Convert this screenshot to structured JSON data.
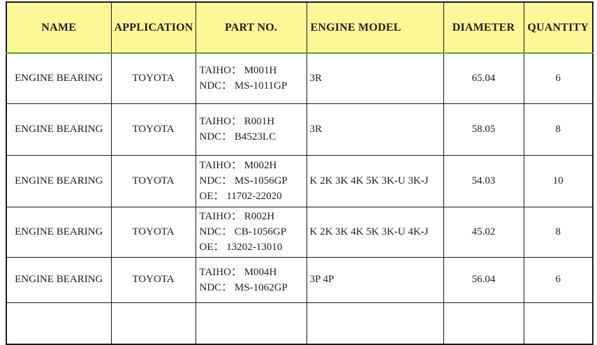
{
  "colors": {
    "header_background": "#faf896",
    "header_separator_green": "#5e9b41",
    "grid_border": "#1a1a1a",
    "body_text": "#1f1f1f"
  },
  "table": {
    "columns": [
      {
        "key": "name",
        "label": "NAME"
      },
      {
        "key": "application",
        "label": "APPLICATION"
      },
      {
        "key": "part_no",
        "label": "PART NO."
      },
      {
        "key": "engine_model",
        "label": "ENGINE MODEL"
      },
      {
        "key": "diameter",
        "label": "DIAMETER"
      },
      {
        "key": "quantity",
        "label": "QUANTITY"
      }
    ],
    "rows": [
      {
        "name": "ENGINE BEARING",
        "application": "TOYOTA",
        "part_no": [
          "TAIHO： M001H",
          "NDC： MS-1011GP"
        ],
        "engine_model": "3R",
        "diameter": "65.04",
        "quantity": "6"
      },
      {
        "name": "ENGINE BEARING",
        "application": "TOYOTA",
        "part_no": [
          "TAIHO： R001H",
          "NDC： B4523LC"
        ],
        "engine_model": "3R",
        "diameter": "58.05",
        "quantity": "8"
      },
      {
        "name": "ENGINE BEARING",
        "application": "TOYOTA",
        "part_no": [
          "TAIHO： M002H",
          "NDC： MS-1056GP",
          "OE： 11702-22020"
        ],
        "engine_model": "K 2K 3K 4K 5K 3K-U 3K-J",
        "diameter": "54.03",
        "quantity": "10"
      },
      {
        "name": "ENGINE BEARING",
        "application": "TOYOTA",
        "part_no": [
          "TAIHO： R002H",
          "NDC： CB-1056GP",
          "OE： 13202-13010"
        ],
        "engine_model": "K 2K 3K 4K 5K 3K-U 4K-J",
        "diameter": "45.02",
        "quantity": "8"
      },
      {
        "name": "ENGINE BEARING",
        "application": "TOYOTA",
        "part_no": [
          "TAIHO： M004H",
          "NDC： MS-1062GP"
        ],
        "engine_model": "3P 4P",
        "diameter": "56.04",
        "quantity": "6"
      }
    ]
  }
}
